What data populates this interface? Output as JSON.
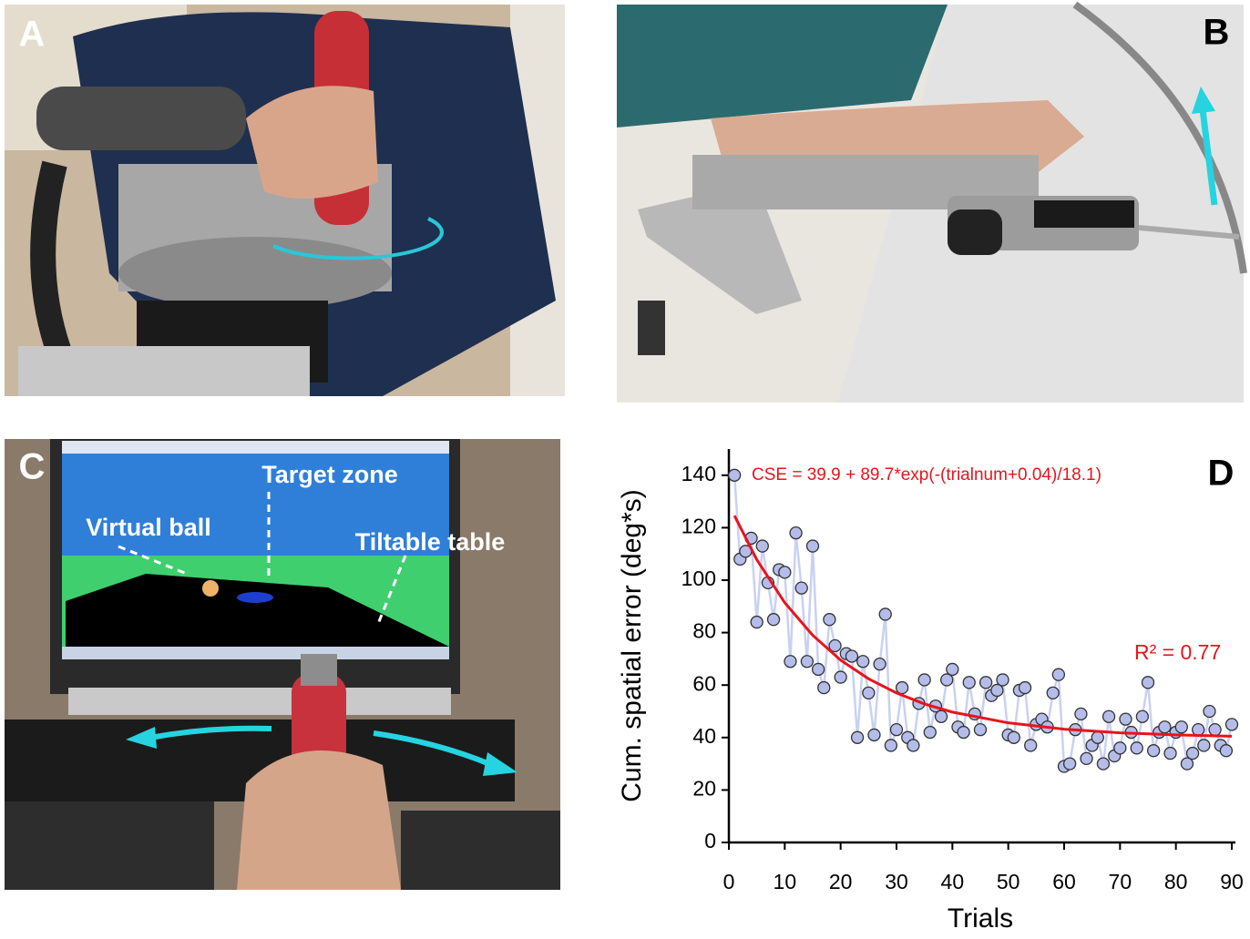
{
  "panel_labels": {
    "a": "A",
    "b": "B",
    "c": "C",
    "d": "D"
  },
  "panel_c": {
    "target_zone": "Target zone",
    "virtual_ball": "Virtual ball",
    "tiltable_table": "Tiltable table"
  },
  "chart_data": {
    "type": "scatter",
    "x_label": "Trials",
    "y_label": "Cum. spatial error (deg*s)",
    "annotations": [
      "CSE = 39.9 + 89.7*exp(-(trialnum+0.04)/18.1)",
      "R² = 0.77"
    ],
    "xlim": [
      0,
      90
    ],
    "xticks": [
      0,
      10,
      20,
      30,
      40,
      50,
      60,
      70,
      80,
      90
    ],
    "ylim": [
      0,
      150
    ],
    "yticks": [
      0,
      20,
      40,
      60,
      80,
      100,
      120,
      140
    ],
    "series": [
      {
        "color": "#b4bdea",
        "line_color": "#c9d1f2",
        "x": [
          1,
          2,
          3,
          4,
          5,
          6,
          7,
          8,
          9,
          10,
          11,
          12,
          13,
          14,
          15,
          16,
          17,
          18,
          19,
          20,
          21,
          22,
          23,
          24,
          25,
          26,
          27,
          28,
          29,
          30,
          31,
          32,
          33,
          34,
          35,
          36,
          37,
          38,
          39,
          40,
          41,
          42,
          43,
          44,
          45,
          46,
          47,
          48,
          49,
          50,
          51,
          52,
          53,
          54,
          55,
          56,
          57,
          58,
          59,
          60,
          61,
          62,
          63,
          64,
          65,
          66,
          67,
          68,
          69,
          70,
          71,
          72,
          73,
          74,
          75,
          76,
          77,
          78,
          79,
          80,
          81,
          82,
          83,
          84,
          85,
          86,
          87,
          88,
          89,
          90
        ],
        "values": [
          140,
          108,
          111,
          116,
          84,
          113,
          99,
          85,
          104,
          103,
          69,
          118,
          97,
          69,
          113,
          66,
          59,
          85,
          75,
          63,
          72,
          71,
          40,
          69,
          57,
          41,
          68,
          87,
          37,
          43,
          59,
          40,
          37,
          53,
          62,
          42,
          52,
          48,
          62,
          66,
          44,
          42,
          61,
          49,
          43,
          61,
          56,
          58,
          62,
          41,
          40,
          58,
          59,
          37,
          45,
          47,
          44,
          57,
          64,
          29,
          30,
          43,
          49,
          32,
          37,
          40,
          30,
          48,
          33,
          36,
          47,
          42,
          36,
          48,
          61,
          35,
          42,
          44,
          34,
          42,
          44,
          30,
          34,
          43,
          37,
          50,
          43,
          37,
          35,
          45
        ]
      },
      {
        "type": "line",
        "color": "#e8141c",
        "x": [
          1,
          5,
          10,
          15,
          20,
          25,
          30,
          35,
          40,
          50,
          60,
          70,
          80,
          90
        ],
        "values": [
          124.6,
          107.8,
          91.4,
          79.0,
          69.5,
          62.4,
          57.0,
          52.8,
          49.7,
          45.6,
          43.2,
          41.8,
          41.0,
          40.5
        ]
      }
    ]
  }
}
